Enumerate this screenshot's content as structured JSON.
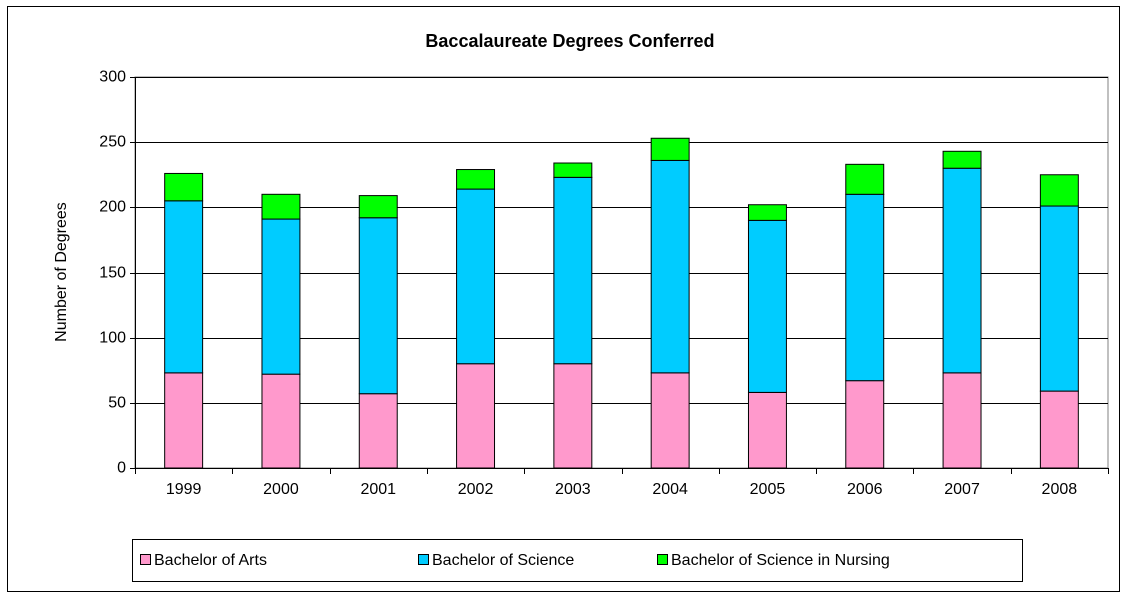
{
  "chart_data": {
    "type": "stacked_bar",
    "title": "Baccalaureate Degrees Conferred",
    "y_label": "Number of Degrees",
    "categories": [
      "1999",
      "2000",
      "2001",
      "2002",
      "2003",
      "2004",
      "2005",
      "2006",
      "2007",
      "2008"
    ],
    "series": [
      {
        "name": "Bachelor of Arts",
        "color": "#ff99cc",
        "values": [
          73,
          72,
          57,
          80,
          80,
          73,
          58,
          67,
          73,
          59
        ]
      },
      {
        "name": "Bachelor of Science",
        "color": "#00ccff",
        "values": [
          132,
          119,
          135,
          134,
          143,
          163,
          132,
          143,
          157,
          142
        ]
      },
      {
        "name": "Bachelor of Science in Nursing",
        "color": "#00ff00",
        "values": [
          21,
          19,
          17,
          15,
          11,
          17,
          12,
          23,
          13,
          24
        ]
      }
    ],
    "ylim": [
      0,
      300
    ],
    "yticks": [
      0,
      50,
      100,
      150,
      200,
      250,
      300
    ],
    "grid": true,
    "legend": "bottom"
  }
}
